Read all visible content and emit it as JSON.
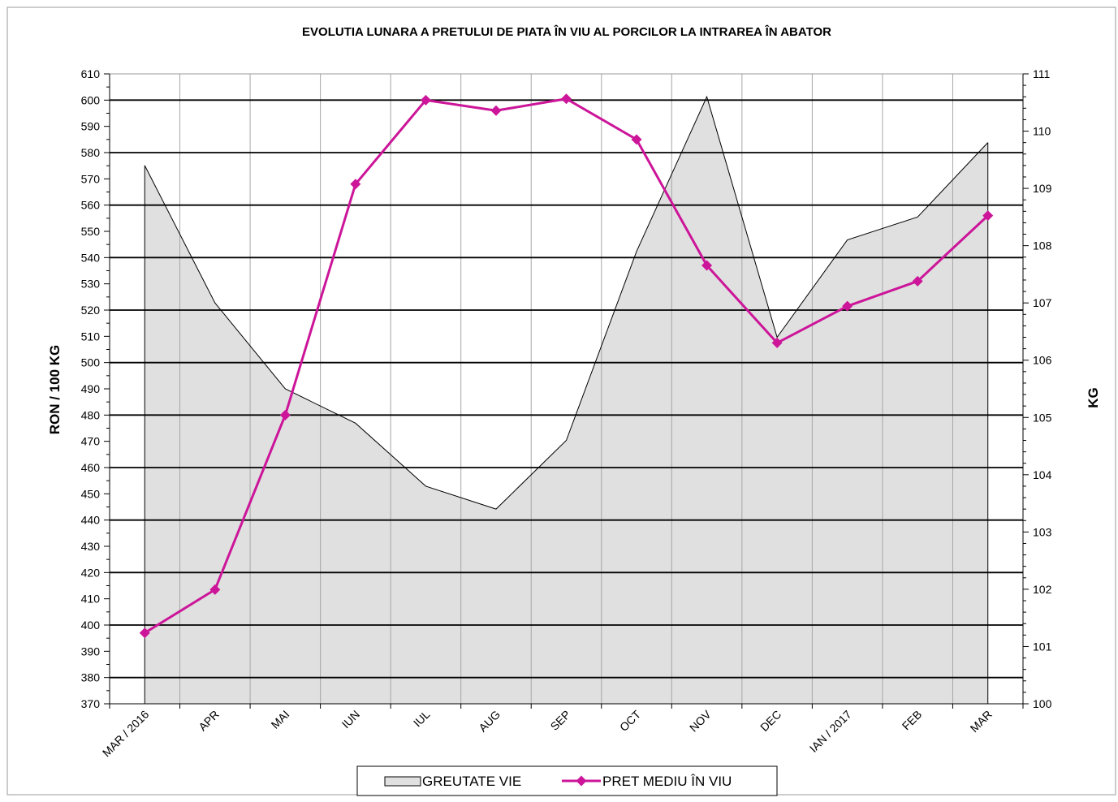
{
  "chart_data": {
    "type": "line",
    "title": "EVOLUTIA LUNARA A PRETULUI DE PIATA ÎN VIU AL PORCILOR  LA INTRAREA ÎN ABATOR",
    "categories": [
      "MAR / 2016",
      "APR",
      "MAI",
      "IUN",
      "IUL",
      "AUG",
      "SEP",
      "OCT",
      "NOV",
      "DEC",
      "IAN / 2017",
      "FEB",
      "MAR"
    ],
    "ylabel_left": "RON / 100 KG",
    "ylabel_right": "KG",
    "ylim_left": [
      370,
      610
    ],
    "yticks_left": [
      370,
      380,
      390,
      400,
      410,
      420,
      430,
      440,
      450,
      460,
      470,
      480,
      490,
      500,
      510,
      520,
      530,
      540,
      550,
      560,
      570,
      580,
      590,
      600,
      610
    ],
    "ylim_right": [
      100,
      111
    ],
    "yticks_right": [
      100,
      101,
      102,
      103,
      104,
      105,
      106,
      107,
      108,
      109,
      110,
      111
    ],
    "grid": true,
    "legend_position": "bottom-center",
    "series": [
      {
        "name": "GREUTATE VIE",
        "kind": "area",
        "axis": "right",
        "color": "#e0e0e0",
        "values": [
          109.4,
          107.0,
          105.5,
          104.9,
          103.8,
          103.4,
          104.6,
          107.9,
          110.6,
          106.4,
          108.1,
          108.5,
          109.8
        ]
      },
      {
        "name": "PRET MEDIU ÎN VIU",
        "kind": "line",
        "axis": "left",
        "color": "#cc1599",
        "values": [
          397,
          413.5,
          480,
          568,
          600,
          596,
          600.5,
          585,
          537,
          507.5,
          521.5,
          531,
          556
        ]
      }
    ]
  }
}
